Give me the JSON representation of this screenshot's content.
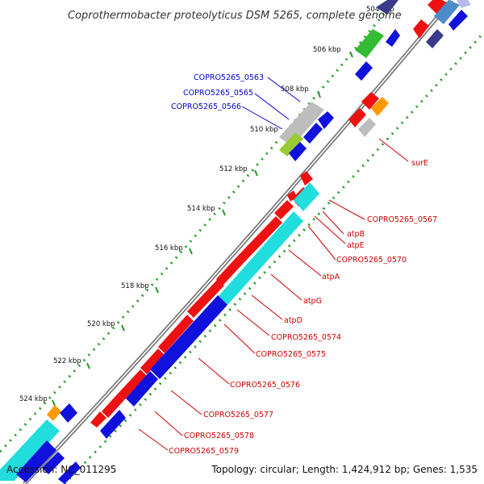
{
  "header": {
    "title": "Coprothermobacter proteolyticus DSM 5265, complete genome"
  },
  "footer": {
    "accession": "Accession: NC_011295",
    "summary": "Topology: circular; Length: 1,424,912 bp; Genes: 1,535"
  },
  "ticks": [
    "506 kbp",
    "508 kbp",
    "510 kbp",
    "512 kbp",
    "514 kbp",
    "516 kbp",
    "518 kbp",
    "520 kbp",
    "522 kbp",
    "524 kbp"
  ],
  "top_cut_label": "504 kbp",
  "colors": {
    "red": "#ee1111",
    "blue": "#1111dd",
    "cyan": "#22dddd",
    "gray": "#bdbdbd",
    "green": "#33bb33",
    "yellowgreen": "#99cc33",
    "orange": "#ff9900",
    "navy": "#3b3b8c",
    "steelblue": "#4d8bc9",
    "tick_green": "#229922",
    "label_blue": "#0000cc",
    "label_red": "#cc0000"
  },
  "left_labels": [
    {
      "text": "COPRO5265_0563"
    },
    {
      "text": "COPRO5265_0565"
    },
    {
      "text": "COPRO5265_0566"
    }
  ],
  "right_labels": [
    {
      "text": "surE"
    },
    {
      "text": "COPRO5265_0567"
    },
    {
      "text": "atpB"
    },
    {
      "text": "atpE"
    },
    {
      "text": "COPRO5265_0570"
    },
    {
      "text": "atpA"
    },
    {
      "text": "atpG"
    },
    {
      "text": "atpD"
    },
    {
      "text": "COPRO5265_0574"
    },
    {
      "text": "COPRO5265_0575"
    },
    {
      "text": "COPRO5265_0576"
    },
    {
      "text": "COPRO5265_0577"
    },
    {
      "text": "COPRO5265_0578"
    },
    {
      "text": "COPRO5265_0579"
    }
  ]
}
